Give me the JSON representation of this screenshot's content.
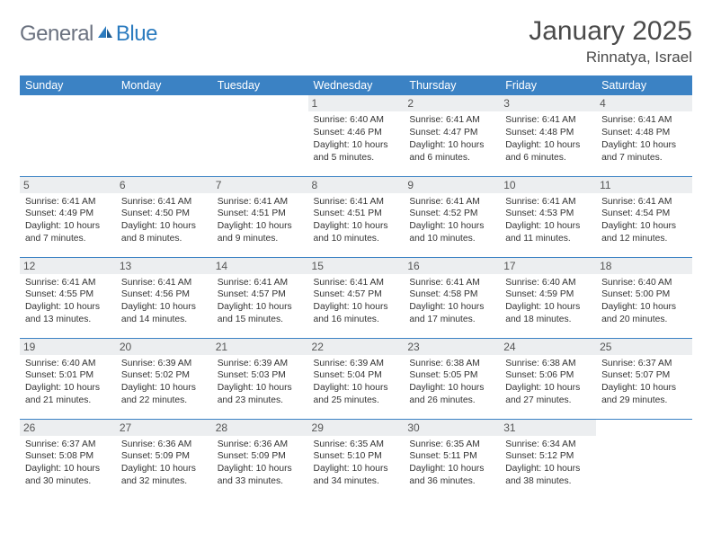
{
  "colors": {
    "header_bg": "#3b82c4",
    "header_text": "#ffffff",
    "daynum_bg": "#eceef0",
    "border": "#3b82c4",
    "body_text": "#333333",
    "logo_gray": "#6b7280",
    "logo_blue": "#2b7bbf"
  },
  "fonts": {
    "month_title_size": 30,
    "location_size": 17,
    "weekday_size": 12.5,
    "daynum_size": 12,
    "cell_text_size": 10.3
  },
  "logo": {
    "part1": "General",
    "part2": "Blue"
  },
  "title": "January 2025",
  "location": "Rinnatya, Israel",
  "weekdays": [
    "Sunday",
    "Monday",
    "Tuesday",
    "Wednesday",
    "Thursday",
    "Friday",
    "Saturday"
  ],
  "weeks": [
    [
      {
        "day": "",
        "sunrise": "",
        "sunset": "",
        "daylight1": "",
        "daylight2": ""
      },
      {
        "day": "",
        "sunrise": "",
        "sunset": "",
        "daylight1": "",
        "daylight2": ""
      },
      {
        "day": "",
        "sunrise": "",
        "sunset": "",
        "daylight1": "",
        "daylight2": ""
      },
      {
        "day": "1",
        "sunrise": "Sunrise: 6:40 AM",
        "sunset": "Sunset: 4:46 PM",
        "daylight1": "Daylight: 10 hours",
        "daylight2": "and 5 minutes."
      },
      {
        "day": "2",
        "sunrise": "Sunrise: 6:41 AM",
        "sunset": "Sunset: 4:47 PM",
        "daylight1": "Daylight: 10 hours",
        "daylight2": "and 6 minutes."
      },
      {
        "day": "3",
        "sunrise": "Sunrise: 6:41 AM",
        "sunset": "Sunset: 4:48 PM",
        "daylight1": "Daylight: 10 hours",
        "daylight2": "and 6 minutes."
      },
      {
        "day": "4",
        "sunrise": "Sunrise: 6:41 AM",
        "sunset": "Sunset: 4:48 PM",
        "daylight1": "Daylight: 10 hours",
        "daylight2": "and 7 minutes."
      }
    ],
    [
      {
        "day": "5",
        "sunrise": "Sunrise: 6:41 AM",
        "sunset": "Sunset: 4:49 PM",
        "daylight1": "Daylight: 10 hours",
        "daylight2": "and 7 minutes."
      },
      {
        "day": "6",
        "sunrise": "Sunrise: 6:41 AM",
        "sunset": "Sunset: 4:50 PM",
        "daylight1": "Daylight: 10 hours",
        "daylight2": "and 8 minutes."
      },
      {
        "day": "7",
        "sunrise": "Sunrise: 6:41 AM",
        "sunset": "Sunset: 4:51 PM",
        "daylight1": "Daylight: 10 hours",
        "daylight2": "and 9 minutes."
      },
      {
        "day": "8",
        "sunrise": "Sunrise: 6:41 AM",
        "sunset": "Sunset: 4:51 PM",
        "daylight1": "Daylight: 10 hours",
        "daylight2": "and 10 minutes."
      },
      {
        "day": "9",
        "sunrise": "Sunrise: 6:41 AM",
        "sunset": "Sunset: 4:52 PM",
        "daylight1": "Daylight: 10 hours",
        "daylight2": "and 10 minutes."
      },
      {
        "day": "10",
        "sunrise": "Sunrise: 6:41 AM",
        "sunset": "Sunset: 4:53 PM",
        "daylight1": "Daylight: 10 hours",
        "daylight2": "and 11 minutes."
      },
      {
        "day": "11",
        "sunrise": "Sunrise: 6:41 AM",
        "sunset": "Sunset: 4:54 PM",
        "daylight1": "Daylight: 10 hours",
        "daylight2": "and 12 minutes."
      }
    ],
    [
      {
        "day": "12",
        "sunrise": "Sunrise: 6:41 AM",
        "sunset": "Sunset: 4:55 PM",
        "daylight1": "Daylight: 10 hours",
        "daylight2": "and 13 minutes."
      },
      {
        "day": "13",
        "sunrise": "Sunrise: 6:41 AM",
        "sunset": "Sunset: 4:56 PM",
        "daylight1": "Daylight: 10 hours",
        "daylight2": "and 14 minutes."
      },
      {
        "day": "14",
        "sunrise": "Sunrise: 6:41 AM",
        "sunset": "Sunset: 4:57 PM",
        "daylight1": "Daylight: 10 hours",
        "daylight2": "and 15 minutes."
      },
      {
        "day": "15",
        "sunrise": "Sunrise: 6:41 AM",
        "sunset": "Sunset: 4:57 PM",
        "daylight1": "Daylight: 10 hours",
        "daylight2": "and 16 minutes."
      },
      {
        "day": "16",
        "sunrise": "Sunrise: 6:41 AM",
        "sunset": "Sunset: 4:58 PM",
        "daylight1": "Daylight: 10 hours",
        "daylight2": "and 17 minutes."
      },
      {
        "day": "17",
        "sunrise": "Sunrise: 6:40 AM",
        "sunset": "Sunset: 4:59 PM",
        "daylight1": "Daylight: 10 hours",
        "daylight2": "and 18 minutes."
      },
      {
        "day": "18",
        "sunrise": "Sunrise: 6:40 AM",
        "sunset": "Sunset: 5:00 PM",
        "daylight1": "Daylight: 10 hours",
        "daylight2": "and 20 minutes."
      }
    ],
    [
      {
        "day": "19",
        "sunrise": "Sunrise: 6:40 AM",
        "sunset": "Sunset: 5:01 PM",
        "daylight1": "Daylight: 10 hours",
        "daylight2": "and 21 minutes."
      },
      {
        "day": "20",
        "sunrise": "Sunrise: 6:39 AM",
        "sunset": "Sunset: 5:02 PM",
        "daylight1": "Daylight: 10 hours",
        "daylight2": "and 22 minutes."
      },
      {
        "day": "21",
        "sunrise": "Sunrise: 6:39 AM",
        "sunset": "Sunset: 5:03 PM",
        "daylight1": "Daylight: 10 hours",
        "daylight2": "and 23 minutes."
      },
      {
        "day": "22",
        "sunrise": "Sunrise: 6:39 AM",
        "sunset": "Sunset: 5:04 PM",
        "daylight1": "Daylight: 10 hours",
        "daylight2": "and 25 minutes."
      },
      {
        "day": "23",
        "sunrise": "Sunrise: 6:38 AM",
        "sunset": "Sunset: 5:05 PM",
        "daylight1": "Daylight: 10 hours",
        "daylight2": "and 26 minutes."
      },
      {
        "day": "24",
        "sunrise": "Sunrise: 6:38 AM",
        "sunset": "Sunset: 5:06 PM",
        "daylight1": "Daylight: 10 hours",
        "daylight2": "and 27 minutes."
      },
      {
        "day": "25",
        "sunrise": "Sunrise: 6:37 AM",
        "sunset": "Sunset: 5:07 PM",
        "daylight1": "Daylight: 10 hours",
        "daylight2": "and 29 minutes."
      }
    ],
    [
      {
        "day": "26",
        "sunrise": "Sunrise: 6:37 AM",
        "sunset": "Sunset: 5:08 PM",
        "daylight1": "Daylight: 10 hours",
        "daylight2": "and 30 minutes."
      },
      {
        "day": "27",
        "sunrise": "Sunrise: 6:36 AM",
        "sunset": "Sunset: 5:09 PM",
        "daylight1": "Daylight: 10 hours",
        "daylight2": "and 32 minutes."
      },
      {
        "day": "28",
        "sunrise": "Sunrise: 6:36 AM",
        "sunset": "Sunset: 5:09 PM",
        "daylight1": "Daylight: 10 hours",
        "daylight2": "and 33 minutes."
      },
      {
        "day": "29",
        "sunrise": "Sunrise: 6:35 AM",
        "sunset": "Sunset: 5:10 PM",
        "daylight1": "Daylight: 10 hours",
        "daylight2": "and 34 minutes."
      },
      {
        "day": "30",
        "sunrise": "Sunrise: 6:35 AM",
        "sunset": "Sunset: 5:11 PM",
        "daylight1": "Daylight: 10 hours",
        "daylight2": "and 36 minutes."
      },
      {
        "day": "31",
        "sunrise": "Sunrise: 6:34 AM",
        "sunset": "Sunset: 5:12 PM",
        "daylight1": "Daylight: 10 hours",
        "daylight2": "and 38 minutes."
      },
      {
        "day": "",
        "sunrise": "",
        "sunset": "",
        "daylight1": "",
        "daylight2": ""
      }
    ]
  ]
}
